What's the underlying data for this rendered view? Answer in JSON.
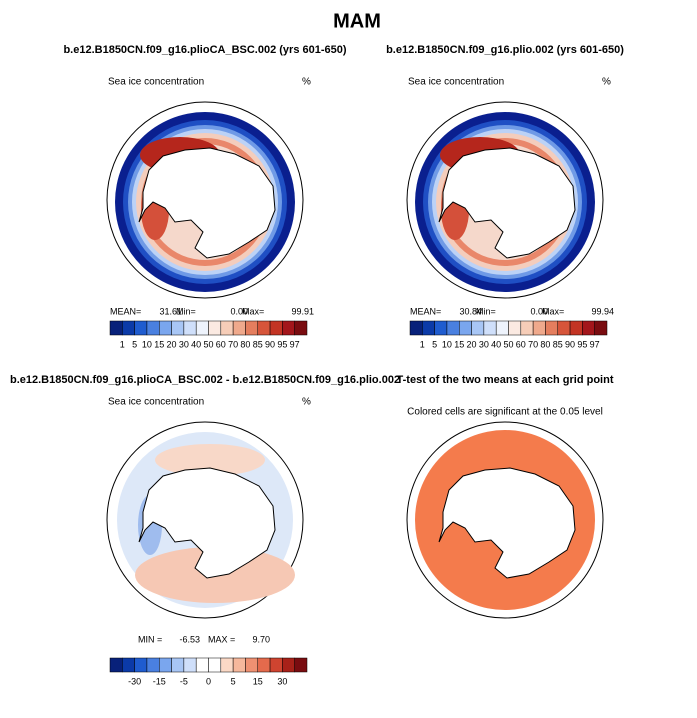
{
  "title": "MAM",
  "panels": [
    {
      "title": "b.e12.B1850CN.f09_g16.plioCA_BSC.002 (yrs 601-650)",
      "subtitle": "Sea ice concentration",
      "units": "%",
      "stats": [
        {
          "label": "MEAN=",
          "value": "31.61"
        },
        {
          "label": "Min=",
          "value": "0.00"
        },
        {
          "label": "Max=",
          "value": "99.91"
        }
      ],
      "colorbar": [
        1,
        5,
        10,
        15,
        20,
        30,
        40,
        50,
        60,
        70,
        80,
        85,
        90,
        95,
        97
      ]
    },
    {
      "title": "b.e12.B1850CN.f09_g16.plio.002 (yrs 601-650)",
      "subtitle": "Sea ice concentration",
      "units": "%",
      "stats": [
        {
          "label": "MEAN=",
          "value": "30.84"
        },
        {
          "label": "Min=",
          "value": "0.00"
        },
        {
          "label": "Max=",
          "value": "99.94"
        }
      ],
      "colorbar": [
        1,
        5,
        10,
        15,
        20,
        30,
        40,
        50,
        60,
        70,
        80,
        85,
        90,
        95,
        97
      ]
    },
    {
      "title": "b.e12.B1850CN.f09_g16.plioCA_BSC.002 - b.e12.B1850CN.f09_g16.plio.002",
      "subtitle": "Sea ice concentration",
      "units": "%",
      "stats": [
        {
          "label": "MIN =",
          "value": "-6.53"
        },
        {
          "label": "MAX =",
          "value": "9.70"
        }
      ],
      "colorbar": [
        -30,
        -15,
        -5,
        0,
        5,
        15,
        30
      ]
    },
    {
      "title": "T-test of the two means at each grid point",
      "subtitle": "Colored cells are significant at the 0.05 level"
    }
  ]
}
